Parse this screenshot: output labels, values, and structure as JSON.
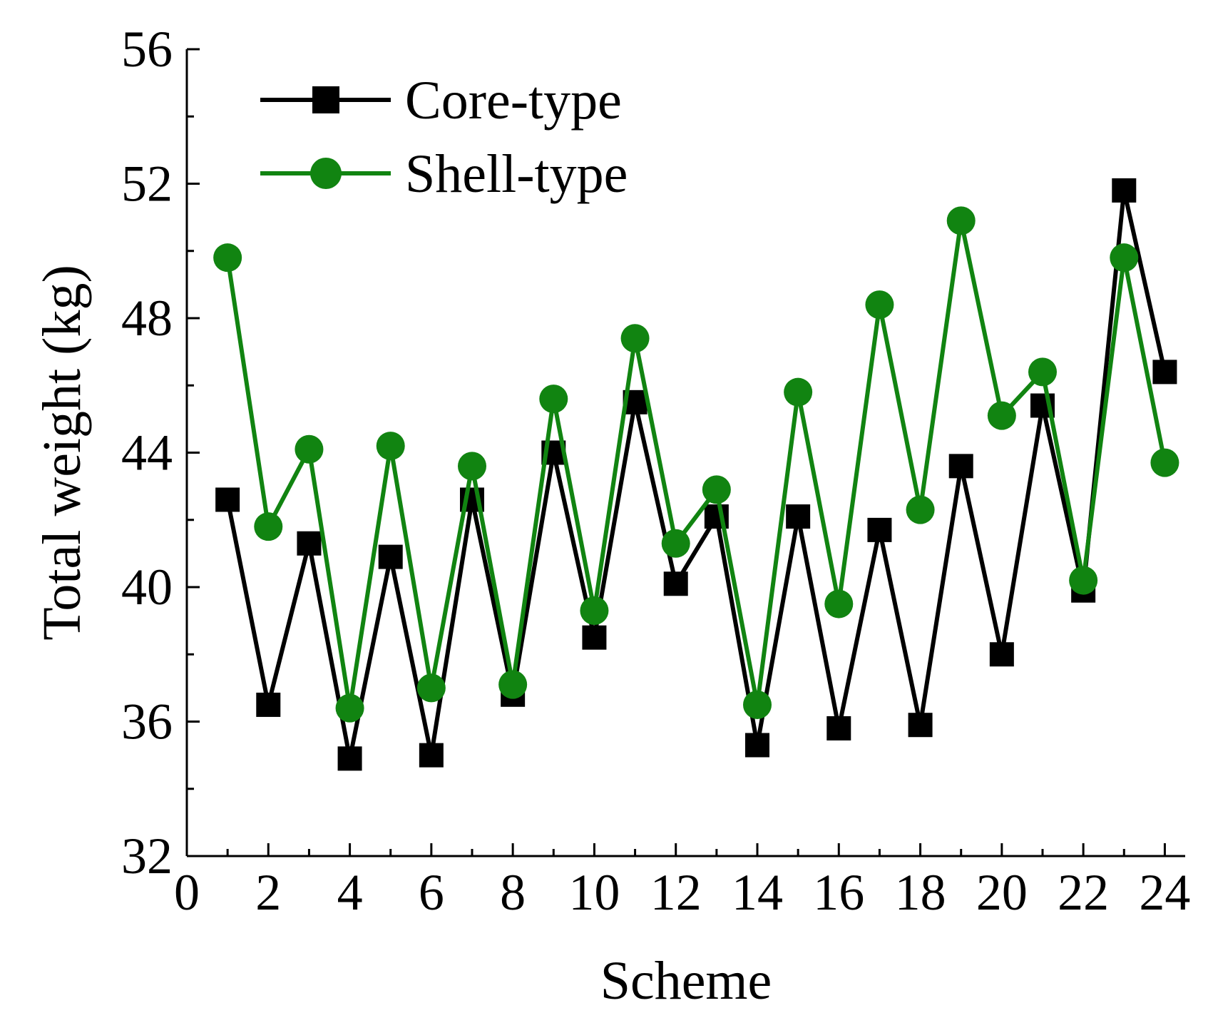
{
  "chart_data": {
    "type": "line",
    "title": "",
    "xlabel": "Scheme",
    "ylabel": "Total weight (kg)",
    "xlim": [
      0,
      24.5
    ],
    "ylim": [
      32,
      56
    ],
    "xticks": [
      0,
      2,
      4,
      6,
      8,
      10,
      12,
      14,
      16,
      18,
      20,
      22,
      24
    ],
    "yticks": [
      32,
      36,
      40,
      44,
      48,
      52,
      56
    ],
    "x": [
      1,
      2,
      3,
      4,
      5,
      6,
      7,
      8,
      9,
      10,
      11,
      12,
      13,
      14,
      15,
      16,
      17,
      18,
      19,
      20,
      21,
      22,
      23,
      24
    ],
    "series": [
      {
        "name": "Core-type",
        "color": "#000000",
        "marker": "square",
        "values": [
          42.6,
          36.5,
          41.3,
          34.9,
          40.9,
          35.0,
          42.6,
          36.8,
          44.0,
          38.5,
          45.5,
          40.1,
          42.1,
          35.3,
          42.1,
          35.8,
          41.7,
          35.9,
          43.6,
          38.0,
          45.4,
          39.9,
          51.8,
          46.4
        ]
      },
      {
        "name": "Shell-type",
        "color": "#118411",
        "marker": "circle",
        "values": [
          49.8,
          41.8,
          44.1,
          36.4,
          44.2,
          37.0,
          43.6,
          37.1,
          45.6,
          39.3,
          47.4,
          41.3,
          42.9,
          36.5,
          45.8,
          39.5,
          48.4,
          42.3,
          50.9,
          45.1,
          46.4,
          40.2,
          49.8,
          43.7
        ]
      }
    ],
    "legend_position": "top-left"
  }
}
